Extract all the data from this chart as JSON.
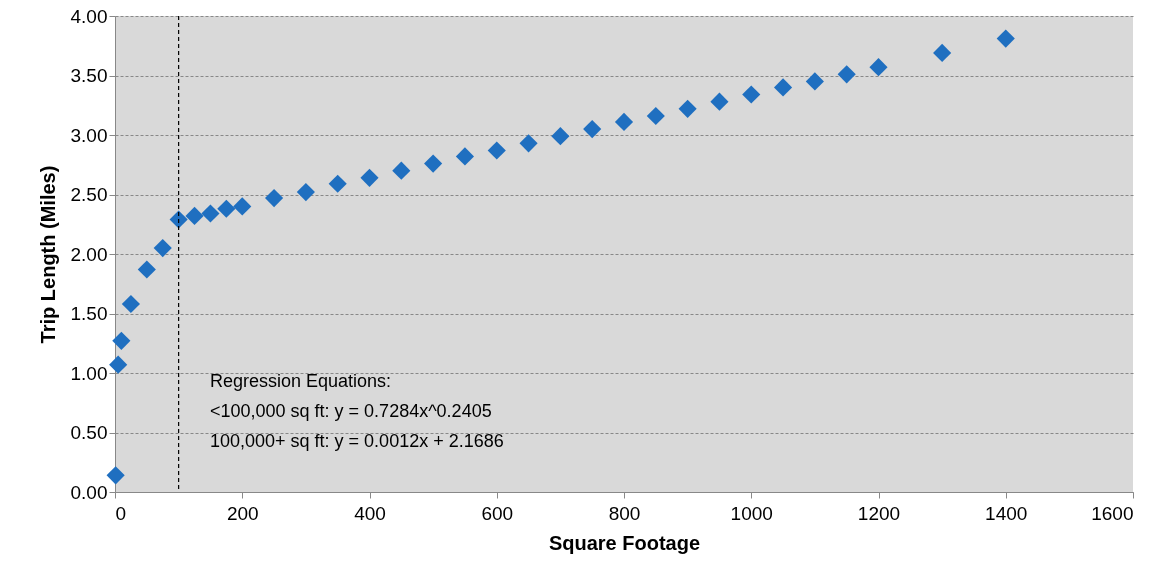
{
  "chart_data": {
    "type": "scatter",
    "xlabel": "Square Footage",
    "ylabel": "Trip Length (Miles)",
    "x": [
      1,
      5,
      10,
      25,
      50,
      75,
      100,
      125,
      150,
      175,
      200,
      250,
      300,
      350,
      400,
      450,
      500,
      550,
      600,
      650,
      700,
      750,
      800,
      850,
      900,
      950,
      1000,
      1050,
      1100,
      1150,
      1200,
      1300,
      1400
    ],
    "series": [
      {
        "color": "#1f6fc0",
        "values": [
          0.14,
          1.07,
          1.27,
          1.58,
          1.87,
          2.05,
          2.29,
          2.32,
          2.34,
          2.38,
          2.4,
          2.47,
          2.52,
          2.59,
          2.64,
          2.7,
          2.76,
          2.82,
          2.87,
          2.93,
          2.99,
          3.05,
          3.11,
          3.16,
          3.22,
          3.28,
          3.34,
          3.4,
          3.45,
          3.51,
          3.57,
          3.69,
          3.81
        ]
      }
    ],
    "xlim": [
      0,
      1600
    ],
    "xticks": [
      0,
      200,
      400,
      600,
      800,
      1000,
      1200,
      1400,
      1600
    ],
    "ylim": [
      0,
      4
    ],
    "yticks": [
      {
        "value": 0,
        "label": "0.00"
      },
      {
        "value": 0.5,
        "label": "0.50"
      },
      {
        "value": 1,
        "label": "1.00"
      },
      {
        "value": 1.5,
        "label": "1.50"
      },
      {
        "value": 2,
        "label": "2.00"
      },
      {
        "value": 2.5,
        "label": "2.50"
      },
      {
        "value": 3,
        "label": "3.00"
      },
      {
        "value": 3.5,
        "label": "3.50"
      },
      {
        "value": 4,
        "label": "4.00"
      }
    ],
    "grid": "y",
    "marker": "diamond",
    "ref_lines": [
      {
        "axis": "x",
        "value": 100,
        "color": "#000000",
        "line_style": "dashed"
      }
    ],
    "annotations": [
      "Regression Equations:",
      "<100,000 sq ft: y = 0.7284x^0.2405",
      "100,000+ sq ft: y = 0.0012x + 2.1686"
    ]
  }
}
